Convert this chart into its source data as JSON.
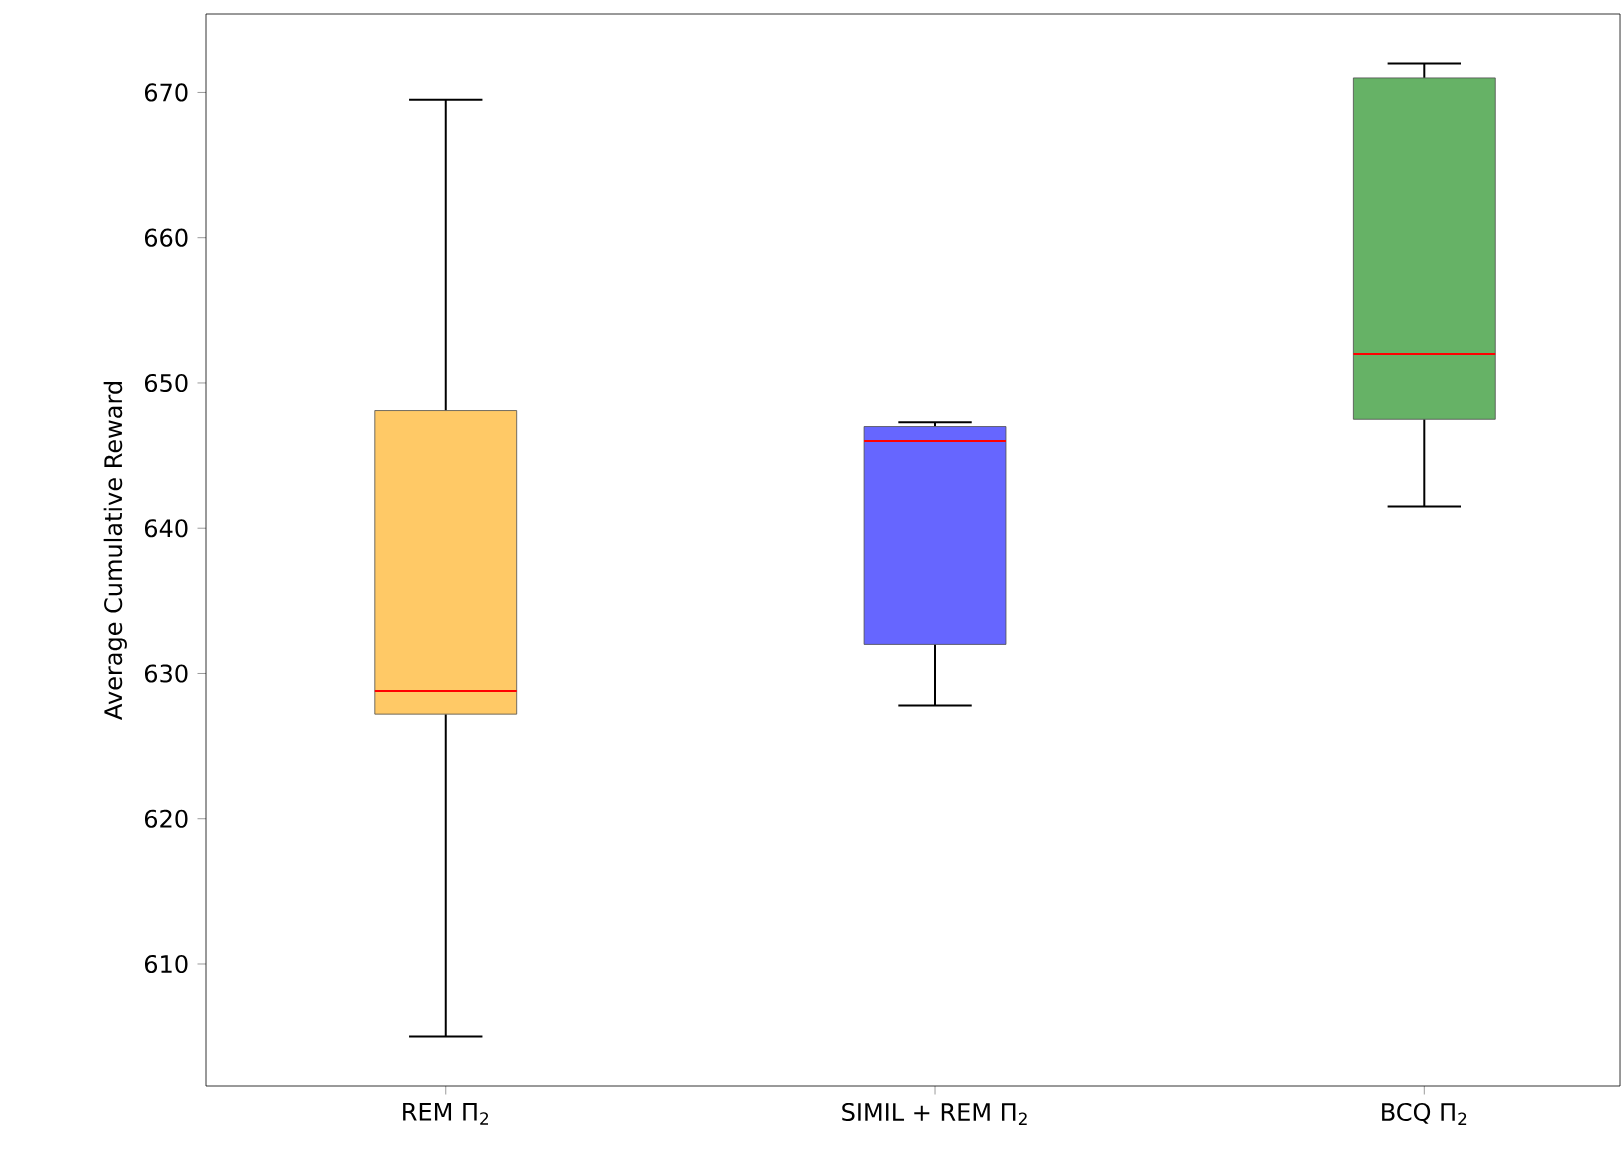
{
  "chart_data": {
    "type": "box",
    "ylabel": "Average Cumulative Reward",
    "categories": [
      "REM Π$_{2}$",
      "SIMIL + REM Π$_{2}$",
      "BCQ Π$_{2}$"
    ],
    "boxes": [
      {
        "low": 605,
        "q1": 627.2,
        "median": 628.8,
        "q3": 648.1,
        "high": 669.5
      },
      {
        "low": 627.8,
        "q1": 632,
        "median": 646,
        "q3": 647,
        "high": 647.3
      },
      {
        "low": 641.5,
        "q1": 647.5,
        "median": 652,
        "q3": 671,
        "high": 672
      }
    ],
    "colors": [
      "#ffc966",
      "#6666ff",
      "#66b266"
    ],
    "ylim": [
      601.6,
      675.4
    ],
    "yticks": [
      610,
      620,
      630,
      640,
      650,
      660,
      670
    ],
    "grid": false
  }
}
